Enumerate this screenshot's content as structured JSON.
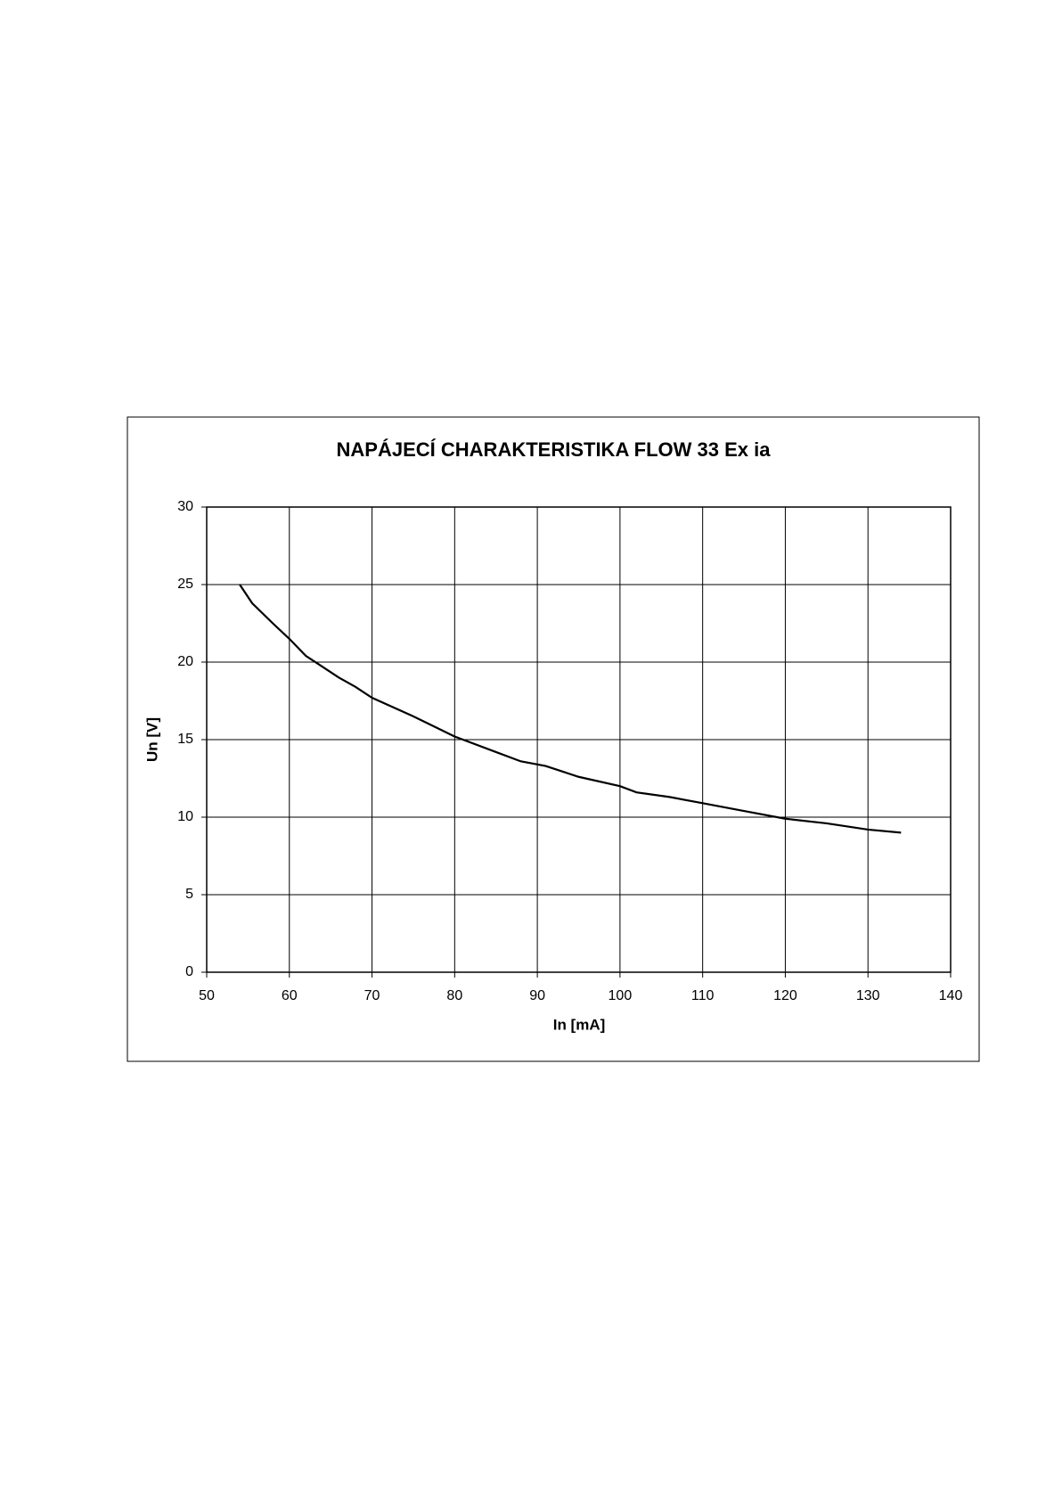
{
  "chart_data": {
    "type": "line",
    "title": "NAPÁJECÍ CHARAKTERISTIKA FLOW 33 Ex ia",
    "x_label": "In [mA]",
    "y_label": "Un [V]",
    "x": [
      54,
      55.5,
      58,
      60,
      62,
      64,
      66,
      68,
      70,
      75,
      80,
      85,
      88,
      91,
      95,
      100,
      102,
      106,
      110,
      115,
      120,
      125,
      130,
      134
    ],
    "series": [
      {
        "color": "#000000",
        "values": [
          25,
          23.8,
          22.5,
          21.5,
          20.4,
          19.7,
          19.0,
          18.4,
          17.7,
          16.5,
          15.2,
          14.2,
          13.6,
          13.3,
          12.6,
          12.0,
          11.6,
          11.3,
          10.9,
          10.4,
          9.9,
          9.6,
          9.2,
          9.0
        ]
      }
    ],
    "xlim": [
      50,
      140
    ],
    "xticks": [
      50,
      60,
      70,
      80,
      90,
      100,
      110,
      120,
      130,
      140
    ],
    "ylim": [
      0,
      30
    ],
    "yticks": [
      0,
      5,
      10,
      15,
      20,
      25,
      30
    ],
    "grid": true
  }
}
